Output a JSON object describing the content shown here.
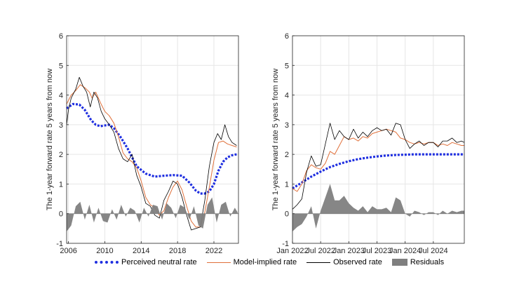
{
  "colors": {
    "neutral": "#1f2fe0",
    "model": "#e0703a",
    "observed": "#000000",
    "residuals": "#7f7f7f",
    "grid": "#e6e6e6"
  },
  "chart_data": [
    {
      "type": "line",
      "id": "left",
      "ylabel": "The 1-year forward rate 5 years from now",
      "xlim": [
        2005.8,
        2024.7
      ],
      "ylim": [
        -1,
        6
      ],
      "xticks": [
        2006,
        2010,
        2014,
        2018,
        2022
      ],
      "xtick_labels": [
        "2006",
        "2010",
        "2014",
        "2018",
        "2022"
      ],
      "yticks": [
        -1,
        0,
        1,
        2,
        3,
        4,
        5,
        6
      ],
      "ytick_labels": [
        "-1",
        "0",
        "1",
        "2",
        "3",
        "4",
        "5",
        "6"
      ],
      "series": [
        {
          "name": "Perceived neutral rate",
          "x": [
            2005.8,
            2006.5,
            2007.2,
            2007.8,
            2008.5,
            2009,
            2009.5,
            2010.5,
            2011,
            2011.7,
            2012.5,
            2013.5,
            2014.5,
            2015.5,
            2016.5,
            2017.5,
            2018.5,
            2019.3,
            2020,
            2020.5,
            2021,
            2021.5,
            2022,
            2022.5,
            2023,
            2023.5,
            2024,
            2024.5
          ],
          "y": [
            3.55,
            3.7,
            3.68,
            3.5,
            3.15,
            3.0,
            2.95,
            3.0,
            2.88,
            2.6,
            2.2,
            1.6,
            1.35,
            1.25,
            1.28,
            1.3,
            1.28,
            1.05,
            0.78,
            0.68,
            0.68,
            0.75,
            1.0,
            1.45,
            1.75,
            1.9,
            1.97,
            2.0
          ]
        },
        {
          "name": "Model-implied rate",
          "x": [
            2005.8,
            2006.3,
            2006.8,
            2007.3,
            2007.8,
            2008.3,
            2008.6,
            2009,
            2009.5,
            2010,
            2010.5,
            2011,
            2011.5,
            2012,
            2012.5,
            2013,
            2013.5,
            2014,
            2014.5,
            2015,
            2015.5,
            2016,
            2016.5,
            2017,
            2017.5,
            2018,
            2018.5,
            2019,
            2019.5,
            2020,
            2020.5,
            2021,
            2021.5,
            2022,
            2022.5,
            2023,
            2023.5,
            2024,
            2024.5
          ],
          "y": [
            3.7,
            4.0,
            4.15,
            4.35,
            4.25,
            4.1,
            3.9,
            4.1,
            3.75,
            3.45,
            3.3,
            3.05,
            2.6,
            2.05,
            1.85,
            1.75,
            1.55,
            1.1,
            0.55,
            0.3,
            0.2,
            -0.05,
            0.1,
            0.55,
            0.9,
            1.1,
            0.8,
            0.25,
            -0.25,
            -0.45,
            -0.45,
            0.05,
            0.9,
            1.8,
            2.4,
            2.45,
            2.35,
            2.3,
            2.25
          ]
        },
        {
          "name": "Observed rate",
          "x": [
            2005.8,
            2006,
            2006.3,
            2006.8,
            2007.2,
            2007.6,
            2008,
            2008.4,
            2008.8,
            2009.2,
            2009.6,
            2010,
            2010.5,
            2011,
            2011.5,
            2012,
            2012.5,
            2013,
            2013.5,
            2014,
            2014.5,
            2015,
            2015.5,
            2016,
            2016.5,
            2017,
            2017.5,
            2018,
            2018.5,
            2019,
            2019.5,
            2020,
            2020.5,
            2021,
            2021.5,
            2022,
            2022.4,
            2022.8,
            2023.2,
            2023.6,
            2024,
            2024.5
          ],
          "y": [
            3.0,
            3.5,
            3.9,
            4.2,
            4.6,
            4.3,
            4.1,
            3.6,
            4.1,
            3.9,
            3.45,
            3.2,
            3.0,
            2.75,
            2.2,
            1.85,
            1.75,
            2.0,
            1.3,
            0.9,
            0.35,
            0.25,
            -0.05,
            -0.15,
            0.45,
            0.75,
            1.1,
            1.0,
            0.55,
            -0.05,
            -0.55,
            -0.5,
            -0.45,
            0.45,
            1.6,
            2.4,
            2.7,
            2.5,
            3.0,
            2.6,
            2.4,
            2.3
          ]
        },
        {
          "name": "Residuals",
          "x": [
            2005.8,
            2006.3,
            2006.8,
            2007.3,
            2007.8,
            2008.3,
            2008.8,
            2009.3,
            2009.8,
            2010.3,
            2010.8,
            2011.3,
            2011.8,
            2012.3,
            2012.8,
            2013.3,
            2013.8,
            2014.3,
            2014.8,
            2015.3,
            2015.8,
            2016.3,
            2016.8,
            2017.3,
            2017.8,
            2018.3,
            2018.8,
            2019.3,
            2019.8,
            2020.3,
            2020.8,
            2021.3,
            2021.8,
            2022.3,
            2022.8,
            2023.3,
            2023.8,
            2024.3,
            2024.6
          ],
          "y": [
            -0.6,
            -0.4,
            0.25,
            0.4,
            -0.2,
            0.3,
            -0.3,
            0.2,
            -0.25,
            -0.3,
            0.15,
            -0.2,
            0.3,
            -0.1,
            0.2,
            0.1,
            -0.3,
            0.2,
            -0.1,
            0.3,
            0.25,
            -0.2,
            0.35,
            0.2,
            -0.15,
            0.3,
            0.2,
            -0.2,
            0.25,
            -0.4,
            -0.5,
            0.3,
            0.55,
            -0.3,
            0.3,
            0.4,
            -0.1,
            0.2,
            0.05
          ]
        }
      ]
    },
    {
      "type": "line",
      "id": "right",
      "ylabel": "The 1-year forward rate 5 years from now",
      "xlim": [
        0,
        36.6
      ],
      "ylim": [
        -1,
        6
      ],
      "xticks": [
        0,
        6,
        12,
        18,
        24,
        30
      ],
      "xtick_labels": [
        "Jan 2022",
        "Jul 2022",
        "Jan 2023",
        "Jul 2023",
        "Jan 2024",
        "Jul 2024"
      ],
      "yticks": [
        -1,
        0,
        1,
        2,
        3,
        4,
        5,
        6
      ],
      "ytick_labels": [
        "-1",
        "0",
        "1",
        "2",
        "3",
        "4",
        "5",
        "6"
      ],
      "series": [
        {
          "name": "Perceived neutral rate",
          "x": [
            0,
            2,
            4,
            6,
            8,
            10,
            12,
            14,
            16,
            18,
            20,
            22,
            24,
            26,
            28,
            30,
            32,
            34,
            36.6
          ],
          "y": [
            0.85,
            1.05,
            1.25,
            1.42,
            1.57,
            1.68,
            1.77,
            1.84,
            1.89,
            1.93,
            1.96,
            1.98,
            1.99,
            2.0,
            2.0,
            2.0,
            2.0,
            2.0,
            2.0
          ]
        },
        {
          "name": "Model-implied rate",
          "x": [
            0,
            1,
            2,
            3,
            4,
            5,
            6,
            7,
            8,
            9,
            10,
            11,
            12,
            13,
            14,
            15,
            16,
            17,
            18,
            19,
            20,
            21,
            22,
            23,
            24,
            25,
            26,
            27,
            28,
            29,
            30,
            31,
            32,
            33,
            34,
            35,
            36,
            36.6
          ],
          "y": [
            0.85,
            0.75,
            1.0,
            1.45,
            1.65,
            1.55,
            1.5,
            1.7,
            2.1,
            2.0,
            2.3,
            2.6,
            2.5,
            2.55,
            2.45,
            2.6,
            2.55,
            2.7,
            2.75,
            2.8,
            2.85,
            2.8,
            2.75,
            2.55,
            2.5,
            2.4,
            2.35,
            2.4,
            2.35,
            2.4,
            2.4,
            2.3,
            2.35,
            2.3,
            2.4,
            2.35,
            2.3,
            2.3
          ]
        },
        {
          "name": "Observed rate",
          "x": [
            0,
            1,
            2,
            3,
            4,
            5,
            6,
            7,
            8,
            9,
            10,
            11,
            12,
            13,
            14,
            15,
            16,
            17,
            18,
            19,
            20,
            21,
            22,
            23,
            24,
            25,
            26,
            27,
            28,
            29,
            30,
            31,
            32,
            33,
            34,
            35,
            36,
            36.6
          ],
          "y": [
            0.15,
            0.3,
            0.5,
            1.4,
            1.95,
            1.6,
            1.65,
            2.35,
            3.05,
            2.5,
            2.8,
            2.6,
            2.5,
            2.85,
            2.55,
            2.75,
            2.6,
            2.8,
            2.9,
            2.8,
            2.85,
            2.65,
            3.05,
            3.0,
            2.5,
            2.2,
            2.35,
            2.45,
            2.3,
            2.4,
            2.4,
            2.25,
            2.45,
            2.45,
            2.55,
            2.4,
            2.45,
            2.4
          ]
        },
        {
          "name": "Residuals",
          "x": [
            0,
            1,
            2,
            3,
            4,
            5,
            6,
            7,
            8,
            9,
            10,
            11,
            12,
            13,
            14,
            15,
            16,
            17,
            18,
            19,
            20,
            21,
            22,
            23,
            24,
            25,
            26,
            27,
            28,
            29,
            30,
            31,
            32,
            33,
            34,
            35,
            36,
            36.6
          ],
          "y": [
            -0.6,
            -0.45,
            -0.35,
            -0.1,
            0.25,
            -0.5,
            0.1,
            0.55,
            1.0,
            0.45,
            0.45,
            0.6,
            0.35,
            0.2,
            0.1,
            0.25,
            0.05,
            0.25,
            0.15,
            0.15,
            0.2,
            0.05,
            0.55,
            0.45,
            0.0,
            -0.1,
            0.1,
            0.05,
            -0.05,
            0.05,
            0.05,
            -0.05,
            0.1,
            0.0,
            0.1,
            0.05,
            0.1,
            0.1
          ]
        }
      ]
    }
  ],
  "legend": {
    "neutral": "Perceived neutral rate",
    "model": "Model-implied rate",
    "observed": "Observed rate",
    "residuals": "Residuals"
  }
}
